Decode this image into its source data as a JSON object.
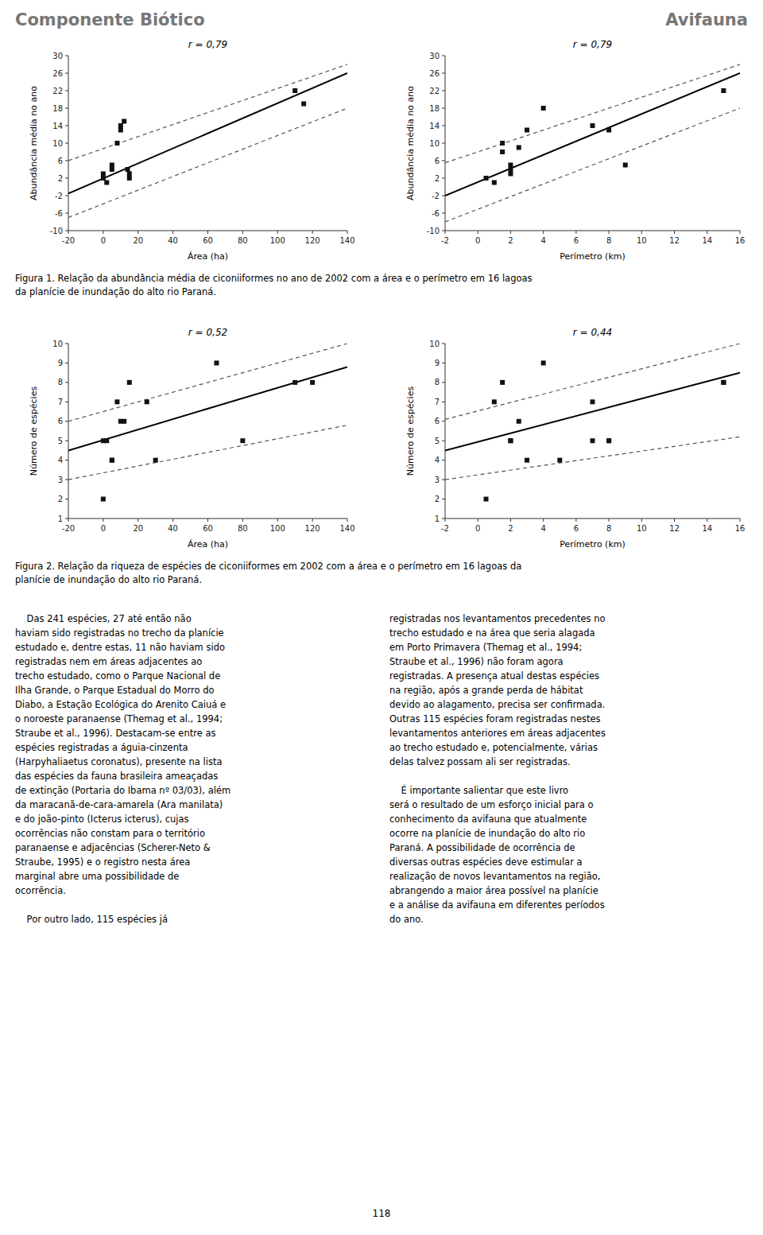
{
  "chart_data": [
    {
      "type": "scatter",
      "title": "r = 0,79",
      "x_label": "Área (ha)",
      "y_label": "Abundância média no ano",
      "xlim": [
        -20,
        140
      ],
      "ylim": [
        -10,
        30
      ],
      "xticks": [
        -20,
        0,
        20,
        40,
        60,
        80,
        100,
        120,
        140
      ],
      "yticks": [
        -10,
        -6,
        -2,
        2,
        6,
        10,
        14,
        18,
        22,
        26,
        30
      ],
      "grid": false,
      "series": [
        {
          "type": "scatter",
          "marker": "square",
          "color": "#111111",
          "x": [
            0,
            0,
            2,
            5,
            5,
            8,
            10,
            10,
            12,
            14,
            15,
            15,
            110,
            115
          ],
          "values": [
            3,
            2,
            1,
            5,
            4,
            10,
            14,
            13,
            15,
            4,
            3,
            2,
            22,
            19
          ]
        },
        {
          "type": "line",
          "line_style": "solid",
          "color": "#000000",
          "x": [
            -20,
            140
          ],
          "values": [
            -1.5,
            26
          ]
        },
        {
          "type": "line",
          "line_style": "dashed",
          "color": "#555555",
          "x": [
            -20,
            140
          ],
          "values": [
            6,
            28
          ]
        },
        {
          "type": "line",
          "line_style": "dashed",
          "color": "#555555",
          "x": [
            -20,
            140
          ],
          "values": [
            -7,
            18
          ]
        }
      ]
    },
    {
      "type": "scatter",
      "title": "r = 0,79",
      "x_label": "Perímetro (km)",
      "y_label": "Abundância média no ano",
      "xlim": [
        -2,
        16
      ],
      "ylim": [
        -10,
        30
      ],
      "xticks": [
        -2,
        0,
        2,
        4,
        6,
        8,
        10,
        12,
        14,
        16
      ],
      "yticks": [
        -10,
        -6,
        -2,
        2,
        6,
        10,
        14,
        18,
        22,
        26,
        30
      ],
      "grid": false,
      "series": [
        {
          "type": "scatter",
          "marker": "square",
          "color": "#111111",
          "x": [
            0.5,
            1,
            1.5,
            1.5,
            2,
            2,
            2,
            2.5,
            3,
            4,
            7,
            8,
            9,
            15
          ],
          "values": [
            2,
            1,
            10,
            8,
            3,
            4,
            5,
            9,
            13,
            18,
            14,
            13,
            5,
            22
          ]
        },
        {
          "type": "line",
          "line_style": "solid",
          "color": "#000000",
          "x": [
            -2,
            16
          ],
          "values": [
            -2,
            26
          ]
        },
        {
          "type": "line",
          "line_style": "dashed",
          "color": "#555555",
          "x": [
            -2,
            16
          ],
          "values": [
            5.5,
            28
          ]
        },
        {
          "type": "line",
          "line_style": "dashed",
          "color": "#555555",
          "x": [
            -2,
            16
          ],
          "values": [
            -8,
            18
          ]
        }
      ]
    },
    {
      "type": "scatter",
      "title": "r = 0,52",
      "x_label": "Área (ha)",
      "y_label": "Número de espécies",
      "xlim": [
        -20,
        140
      ],
      "ylim": [
        1,
        10
      ],
      "xticks": [
        -20,
        0,
        20,
        40,
        60,
        80,
        100,
        120,
        140
      ],
      "yticks": [
        1,
        2,
        3,
        4,
        5,
        6,
        7,
        8,
        9,
        10
      ],
      "grid": false,
      "series": [
        {
          "type": "scatter",
          "marker": "square",
          "color": "#111111",
          "x": [
            0,
            0,
            2,
            5,
            5,
            8,
            10,
            12,
            15,
            25,
            30,
            65,
            80,
            110,
            120
          ],
          "values": [
            2,
            5,
            5,
            4,
            4,
            7,
            6,
            6,
            8,
            7,
            4,
            9,
            5,
            8,
            8
          ]
        },
        {
          "type": "line",
          "line_style": "solid",
          "color": "#000000",
          "x": [
            -20,
            140
          ],
          "values": [
            4.5,
            8.8
          ]
        },
        {
          "type": "line",
          "line_style": "dashed",
          "color": "#555555",
          "x": [
            -20,
            140
          ],
          "values": [
            6.0,
            10.0
          ]
        },
        {
          "type": "line",
          "line_style": "dashed",
          "color": "#555555",
          "x": [
            -20,
            140
          ],
          "values": [
            3.0,
            5.8
          ]
        }
      ]
    },
    {
      "type": "scatter",
      "title": "r = 0,44",
      "x_label": "Perímetro (km)",
      "y_label": "Número de espécies",
      "xlim": [
        -2,
        16
      ],
      "ylim": [
        1,
        10
      ],
      "xticks": [
        -2,
        0,
        2,
        4,
        6,
        8,
        10,
        12,
        14,
        16
      ],
      "yticks": [
        1,
        2,
        3,
        4,
        5,
        6,
        7,
        8,
        9,
        10
      ],
      "grid": false,
      "series": [
        {
          "type": "scatter",
          "marker": "square",
          "color": "#111111",
          "x": [
            0.5,
            1,
            1.5,
            2,
            2,
            2.5,
            3,
            4,
            5,
            7,
            7,
            8,
            8,
            15,
            15
          ],
          "values": [
            2,
            7,
            8,
            5,
            5,
            6,
            4,
            9,
            4,
            5,
            7,
            5,
            5,
            8,
            8
          ]
        },
        {
          "type": "line",
          "line_style": "solid",
          "color": "#000000",
          "x": [
            -2,
            16
          ],
          "values": [
            4.5,
            8.5
          ]
        },
        {
          "type": "line",
          "line_style": "dashed",
          "color": "#555555",
          "x": [
            -2,
            16
          ],
          "values": [
            6.1,
            10.0
          ]
        },
        {
          "type": "line",
          "line_style": "dashed",
          "color": "#555555",
          "x": [
            -2,
            16
          ],
          "values": [
            3.0,
            5.2
          ]
        }
      ]
    }
  ],
  "header": {
    "left": "Componente Biótico",
    "right": "Avifauna",
    "color": "#777777"
  },
  "captions": [
    [
      "Figura 1. Relação da abundância média de ciconiiformes no ano de 2002 com a área e o perímetro em 16 lagoas",
      "da planície de inundação do alto rio Paraná."
    ],
    [
      "Figura 2. Relação da riqueza de espécies de ciconiiformes em 2002 com a área e o perímetro em 16 lagoas da",
      "planície de inundação do alto rio Paraná."
    ]
  ],
  "body_columns": [
    [
      [
        "    Das 241 espécies, 27 até então não",
        "haviam sido registradas no trecho da planície",
        "estudado e, dentre estas, 11 não haviam sido",
        "registradas nem em áreas adjacentes ao",
        "trecho estudado, como o Parque Nacional de",
        "Ilha Grande, o Parque Estadual do Morro do",
        "Diabo, a Estação Ecológica do Arenito Caiuá e",
        "o noroeste paranaense (Themag et al., 1994;",
        "Straube et al., 1996). Destacam-se entre as",
        "espécies registradas a águia-cinzenta",
        "(Harpyhaliaetus coronatus), presente na lista",
        "das espécies da fauna brasileira ameaçadas",
        "de extinção (Portaria do Ibama nº 03/03), além",
        "da maracanã-de-cara-amarela (Ara manilata)",
        "e do joão-pinto (Icterus icterus), cujas",
        "ocorrências não constam para o território",
        "paranaense e adjacências (Scherer-Neto &",
        "Straube, 1995) e o registro nesta área",
        "marginal abre uma possibilidade de",
        "ocorrência."
      ],
      [
        "    Por outro lado, 115 espécies já"
      ]
    ],
    [
      [
        "registradas nos levantamentos precedentes no",
        "trecho estudado e na área que seria alagada",
        "em Porto Primavera (Themag et al., 1994;",
        "Straube et al., 1996) não foram agora",
        "registradas. A presença atual destas espécies",
        "na região, após a grande perda de hábitat",
        "devido ao alagamento, precisa ser confirmada.",
        "Outras 115 espécies foram registradas nestes",
        "levantamentos anteriores em áreas adjacentes",
        "ao trecho estudado e, potencialmente, várias",
        "delas talvez possam ali ser registradas."
      ],
      [
        "    É importante salientar que este livro",
        "será o resultado de um esforço inicial para o",
        "conhecimento da avifauna que atualmente",
        "ocorre na planície de inundação do alto rio",
        "Paraná. A possibilidade de ocorrência de",
        "diversas outras espécies deve estimular a",
        "realização de novos levantamentos na região,",
        "abrangendo a maior área possível na planície",
        "e a análise da avifauna em diferentes períodos",
        "do ano."
      ]
    ]
  ],
  "page_number": "118"
}
